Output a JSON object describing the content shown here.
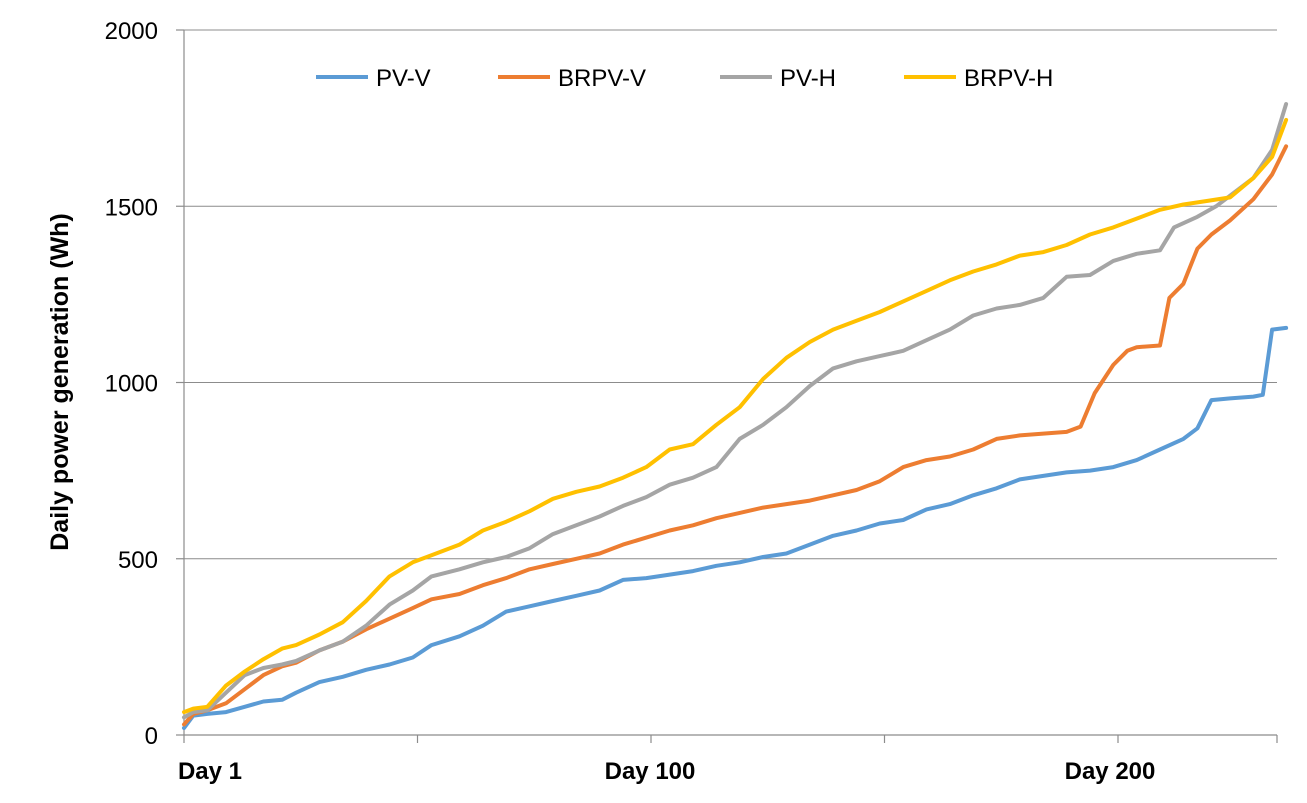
{
  "chart_data": {
    "type": "line",
    "title": "",
    "xlabel": "",
    "ylabel": "Daily power generation (Wh)",
    "xlim": [
      1,
      270
    ],
    "ylim": [
      0,
      2000
    ],
    "y_ticks": [
      0,
      500,
      1000,
      1500,
      2000
    ],
    "y_tick_labels": [
      "0",
      "500",
      "1000",
      "1500",
      "2000"
    ],
    "x_tick_labels": [
      {
        "x": 1,
        "label": "Day 1"
      },
      {
        "x": 100,
        "label": "Day 100"
      },
      {
        "x": 200,
        "label": "Day 200"
      }
    ],
    "x_tick_marks": [
      1,
      101,
      201,
      301,
      401,
      501
    ],
    "grid": true,
    "legend_position": "top",
    "series": [
      {
        "name": "PV-V",
        "color": "#5B9BD5",
        "points": [
          [
            1,
            20
          ],
          [
            3,
            55
          ],
          [
            6,
            60
          ],
          [
            10,
            65
          ],
          [
            14,
            80
          ],
          [
            18,
            95
          ],
          [
            22,
            100
          ],
          [
            25,
            120
          ],
          [
            30,
            150
          ],
          [
            35,
            165
          ],
          [
            40,
            185
          ],
          [
            45,
            200
          ],
          [
            50,
            220
          ],
          [
            54,
            255
          ],
          [
            60,
            280
          ],
          [
            65,
            310
          ],
          [
            70,
            350
          ],
          [
            75,
            365
          ],
          [
            80,
            380
          ],
          [
            85,
            395
          ],
          [
            90,
            410
          ],
          [
            95,
            440
          ],
          [
            100,
            445
          ],
          [
            105,
            455
          ],
          [
            110,
            465
          ],
          [
            115,
            480
          ],
          [
            120,
            490
          ],
          [
            125,
            505
          ],
          [
            130,
            515
          ],
          [
            135,
            540
          ],
          [
            140,
            565
          ],
          [
            145,
            580
          ],
          [
            150,
            600
          ],
          [
            155,
            610
          ],
          [
            160,
            640
          ],
          [
            165,
            655
          ],
          [
            170,
            680
          ],
          [
            175,
            700
          ],
          [
            180,
            725
          ],
          [
            185,
            735
          ],
          [
            190,
            745
          ],
          [
            195,
            750
          ],
          [
            200,
            760
          ],
          [
            205,
            780
          ],
          [
            210,
            810
          ],
          [
            215,
            840
          ],
          [
            218,
            870
          ],
          [
            221,
            950
          ],
          [
            225,
            955
          ],
          [
            230,
            960
          ],
          [
            232,
            965
          ],
          [
            234,
            1150
          ],
          [
            237,
            1155
          ]
        ]
      },
      {
        "name": "BRPV-V",
        "color": "#ED7D31",
        "points": [
          [
            1,
            30
          ],
          [
            3,
            60
          ],
          [
            6,
            70
          ],
          [
            10,
            90
          ],
          [
            14,
            130
          ],
          [
            18,
            170
          ],
          [
            22,
            195
          ],
          [
            25,
            205
          ],
          [
            30,
            240
          ],
          [
            35,
            265
          ],
          [
            40,
            300
          ],
          [
            45,
            330
          ],
          [
            50,
            360
          ],
          [
            54,
            385
          ],
          [
            60,
            400
          ],
          [
            65,
            425
          ],
          [
            70,
            445
          ],
          [
            75,
            470
          ],
          [
            80,
            485
          ],
          [
            85,
            500
          ],
          [
            90,
            515
          ],
          [
            95,
            540
          ],
          [
            100,
            560
          ],
          [
            105,
            580
          ],
          [
            110,
            595
          ],
          [
            115,
            615
          ],
          [
            120,
            630
          ],
          [
            125,
            645
          ],
          [
            130,
            655
          ],
          [
            135,
            665
          ],
          [
            140,
            680
          ],
          [
            145,
            695
          ],
          [
            150,
            720
          ],
          [
            155,
            760
          ],
          [
            160,
            780
          ],
          [
            165,
            790
          ],
          [
            170,
            810
          ],
          [
            175,
            840
          ],
          [
            180,
            850
          ],
          [
            185,
            855
          ],
          [
            190,
            860
          ],
          [
            193,
            875
          ],
          [
            196,
            970
          ],
          [
            200,
            1050
          ],
          [
            203,
            1090
          ],
          [
            205,
            1100
          ],
          [
            210,
            1105
          ],
          [
            212,
            1240
          ],
          [
            215,
            1280
          ],
          [
            218,
            1380
          ],
          [
            221,
            1420
          ],
          [
            225,
            1460
          ],
          [
            230,
            1520
          ],
          [
            234,
            1590
          ],
          [
            237,
            1670
          ]
        ]
      },
      {
        "name": "PV-H",
        "color": "#A5A5A5",
        "points": [
          [
            1,
            50
          ],
          [
            3,
            65
          ],
          [
            6,
            70
          ],
          [
            10,
            120
          ],
          [
            14,
            170
          ],
          [
            18,
            190
          ],
          [
            22,
            200
          ],
          [
            25,
            210
          ],
          [
            30,
            240
          ],
          [
            35,
            265
          ],
          [
            40,
            310
          ],
          [
            45,
            370
          ],
          [
            50,
            410
          ],
          [
            54,
            450
          ],
          [
            60,
            470
          ],
          [
            65,
            490
          ],
          [
            70,
            505
          ],
          [
            75,
            530
          ],
          [
            80,
            570
          ],
          [
            85,
            595
          ],
          [
            90,
            620
          ],
          [
            95,
            650
          ],
          [
            100,
            675
          ],
          [
            105,
            710
          ],
          [
            110,
            730
          ],
          [
            115,
            760
          ],
          [
            120,
            840
          ],
          [
            125,
            880
          ],
          [
            130,
            930
          ],
          [
            135,
            990
          ],
          [
            140,
            1040
          ],
          [
            145,
            1060
          ],
          [
            150,
            1075
          ],
          [
            155,
            1090
          ],
          [
            160,
            1120
          ],
          [
            165,
            1150
          ],
          [
            170,
            1190
          ],
          [
            175,
            1210
          ],
          [
            180,
            1220
          ],
          [
            185,
            1240
          ],
          [
            190,
            1300
          ],
          [
            195,
            1305
          ],
          [
            200,
            1345
          ],
          [
            205,
            1365
          ],
          [
            210,
            1375
          ],
          [
            213,
            1440
          ],
          [
            218,
            1470
          ],
          [
            222,
            1500
          ],
          [
            226,
            1540
          ],
          [
            230,
            1580
          ],
          [
            234,
            1660
          ],
          [
            237,
            1790
          ]
        ]
      },
      {
        "name": "BRPV-H",
        "color": "#FFC000",
        "points": [
          [
            1,
            65
          ],
          [
            3,
            75
          ],
          [
            6,
            80
          ],
          [
            10,
            140
          ],
          [
            14,
            180
          ],
          [
            18,
            215
          ],
          [
            22,
            245
          ],
          [
            25,
            255
          ],
          [
            30,
            285
          ],
          [
            35,
            320
          ],
          [
            40,
            380
          ],
          [
            45,
            450
          ],
          [
            50,
            490
          ],
          [
            54,
            510
          ],
          [
            60,
            540
          ],
          [
            65,
            580
          ],
          [
            70,
            605
          ],
          [
            75,
            635
          ],
          [
            80,
            670
          ],
          [
            85,
            690
          ],
          [
            90,
            705
          ],
          [
            95,
            730
          ],
          [
            100,
            760
          ],
          [
            105,
            810
          ],
          [
            110,
            825
          ],
          [
            115,
            880
          ],
          [
            120,
            930
          ],
          [
            125,
            1010
          ],
          [
            130,
            1070
          ],
          [
            135,
            1115
          ],
          [
            140,
            1150
          ],
          [
            145,
            1175
          ],
          [
            150,
            1200
          ],
          [
            155,
            1230
          ],
          [
            160,
            1260
          ],
          [
            165,
            1290
          ],
          [
            170,
            1315
          ],
          [
            175,
            1335
          ],
          [
            180,
            1360
          ],
          [
            185,
            1370
          ],
          [
            190,
            1390
          ],
          [
            195,
            1420
          ],
          [
            200,
            1440
          ],
          [
            205,
            1465
          ],
          [
            210,
            1490
          ],
          [
            215,
            1505
          ],
          [
            220,
            1515
          ],
          [
            225,
            1525
          ],
          [
            230,
            1580
          ],
          [
            234,
            1640
          ],
          [
            237,
            1745
          ]
        ]
      }
    ]
  }
}
